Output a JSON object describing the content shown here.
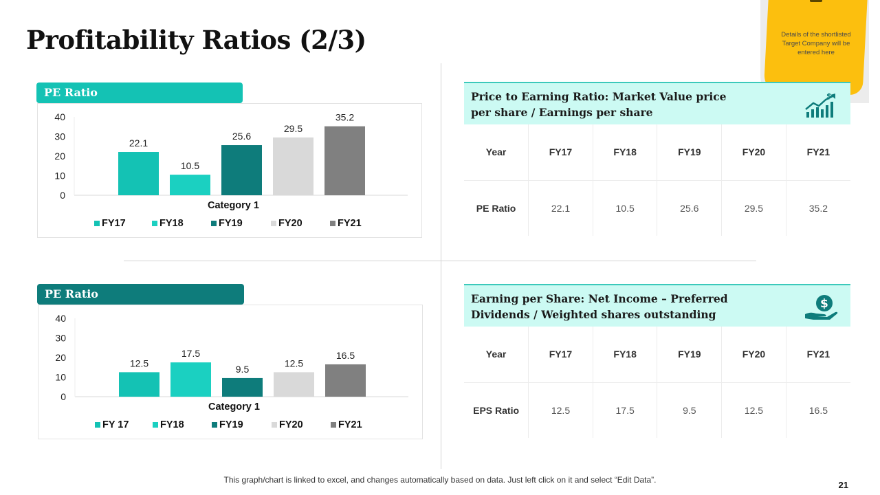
{
  "title": "Profitability Ratios (2/3)",
  "sticky_note": "Details of the shortlisted Target Company will be entered here",
  "colors": {
    "teal_light": "#14c2b4",
    "teal_bright": "#1bd0c1",
    "teal_dark": "#0e7c7b",
    "gray_light": "#d9d9d9",
    "gray_dark": "#808080",
    "header_bg": "#ccfaf3"
  },
  "chart_data": [
    {
      "type": "bar",
      "tab_label": "PE Ratio",
      "categories": [
        "Category 1"
      ],
      "xlabel": "Category 1",
      "ylim": [
        0,
        40
      ],
      "yticks": [
        "0",
        "10",
        "20",
        "30",
        "40"
      ],
      "series": [
        {
          "name": "FY17",
          "values": [
            22.1
          ],
          "label": "22.1",
          "color": "#14c2b4"
        },
        {
          "name": "FY18",
          "values": [
            10.5
          ],
          "label": "10.5",
          "color": "#1bd0c1"
        },
        {
          "name": "FY19",
          "values": [
            25.6
          ],
          "label": "25.6",
          "color": "#0e7c7b"
        },
        {
          "name": "FY20",
          "values": [
            29.5
          ],
          "label": "29.5",
          "color": "#d9d9d9"
        },
        {
          "name": "FY21",
          "values": [
            35.2
          ],
          "label": "35.2",
          "color": "#808080"
        }
      ]
    },
    {
      "type": "bar",
      "tab_label": "PE Ratio",
      "categories": [
        "Category 1"
      ],
      "xlabel": "Category 1",
      "ylim": [
        0,
        40
      ],
      "yticks": [
        "0",
        "10",
        "20",
        "30",
        "40"
      ],
      "series": [
        {
          "name": "FY 17",
          "values": [
            12.5
          ],
          "label": "12.5",
          "color": "#14c2b4"
        },
        {
          "name": "FY18",
          "values": [
            17.5
          ],
          "label": "17.5",
          "color": "#1bd0c1"
        },
        {
          "name": "FY19",
          "values": [
            9.5
          ],
          "label": "9.5",
          "color": "#0e7c7b"
        },
        {
          "name": "FY20",
          "values": [
            12.5
          ],
          "label": "12.5",
          "color": "#d9d9d9"
        },
        {
          "name": "FY21",
          "values": [
            16.5
          ],
          "label": "16.5",
          "color": "#808080"
        }
      ]
    }
  ],
  "pe_section": {
    "heading": "Price to Earning Ratio: Market Value price per share / Earnings per share",
    "icon": "growth-chart-icon",
    "table": {
      "header": [
        "Year",
        "FY17",
        "FY18",
        "FY19",
        "FY20",
        "FY21"
      ],
      "row": [
        "PE Ratio",
        "22.1",
        "10.5",
        "25.6",
        "29.5",
        "35.2"
      ]
    }
  },
  "eps_section": {
    "heading": "Earning per Share: Net Income – Preferred Dividends / Weighted shares outstanding",
    "icon": "money-hand-icon",
    "table": {
      "header": [
        "Year",
        "FY17",
        "FY18",
        "FY19",
        "FY20",
        "FY21"
      ],
      "row": [
        "EPS Ratio",
        "12.5",
        "17.5",
        "9.5",
        "12.5",
        "16.5"
      ]
    }
  },
  "footer": "This graph/chart is linked to excel, and changes automatically based on data. Just left click on it and select “Edit Data”.",
  "page_number": "21"
}
